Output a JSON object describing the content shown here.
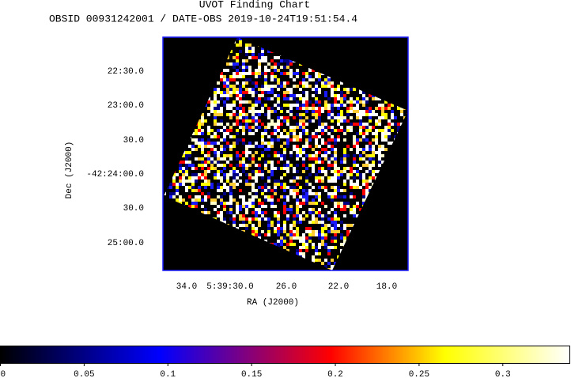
{
  "chart_data": {
    "type": "image",
    "title": "UVOT Finding Chart",
    "subtitle": "OBSID 00931242001 / DATE-OBS 2019-10-24T19:51:54.4",
    "x_label": "RA (J2000)",
    "y_label": "Dec (J2000)",
    "xtick_labels": [
      "34.0",
      "5:39:30.0",
      "26.0",
      "22.0",
      "18.0"
    ],
    "ytick_labels": [
      "22:30.0",
      "23:00.0",
      "30.0",
      "-42:24:00.0",
      "30.0",
      "25:00.0"
    ],
    "colorbar": {
      "lim": [
        0,
        0.34
      ],
      "ticks": [
        0,
        0.05,
        0.1,
        0.15,
        0.2,
        0.25,
        0.3
      ]
    }
  }
}
